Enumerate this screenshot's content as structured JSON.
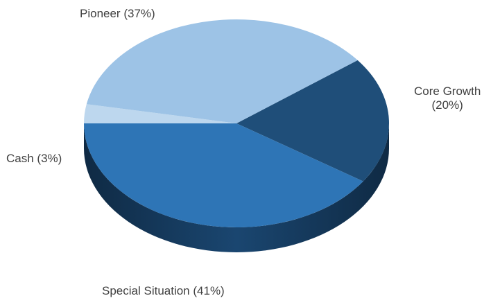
{
  "chart_data": {
    "type": "pie",
    "style": "3d",
    "slices": [
      {
        "label": "Core Growth",
        "percent_text": "(20%)",
        "value": 20,
        "color": "#1f4e79"
      },
      {
        "label": "Special Situation",
        "percent_text": "(41%)",
        "value": 41,
        "color": "#2e75b6"
      },
      {
        "label": "Cash",
        "percent_text": "(3%)",
        "value": 3,
        "color": "#bdd7ee"
      },
      {
        "label": "Pioneer",
        "percent_text": "(37%)",
        "value": 37,
        "color": "#9dc3e6"
      }
    ],
    "side_color": "#163a5c",
    "title": "",
    "legend": "none"
  }
}
